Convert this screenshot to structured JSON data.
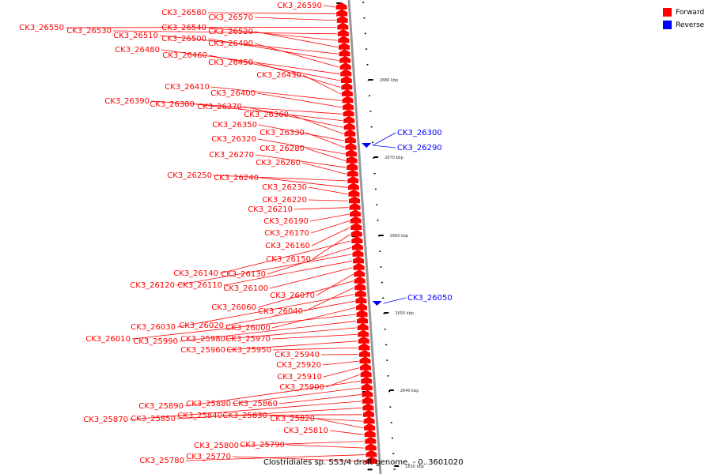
{
  "title": "Clostridiales sp. SS3/4 draft genome. - 0..3601020",
  "legend": [
    {
      "label": "Forward",
      "color": "#ff0000"
    },
    {
      "label": "Reverse",
      "color": "#0000ff"
    }
  ],
  "colors": {
    "forward": "#ff0000",
    "reverse": "#0000ff",
    "backbone": "#999999"
  },
  "axis_ticks": [
    "2680 kbp",
    "2670 kbp",
    "2660 kbp",
    "2650 kbp",
    "2640 kbp",
    "2630 kbp"
  ],
  "genes_forward": [
    "CK3_26590",
    "CK3_26580",
    "CK3_26570",
    "CK3_26550",
    "CK3_26530",
    "CK3_26540",
    "CK3_26520",
    "CK3_26510",
    "CK3_26500",
    "CK3_26490",
    "CK3_26480",
    "CK3_26460",
    "CK3_26450",
    "CK3_26430",
    "CK3_26410",
    "CK3_26400",
    "CK3_26390",
    "CK3_26380",
    "CK3_26370",
    "CK3_26360",
    "CK3_26350",
    "CK3_26330",
    "CK3_26320",
    "CK3_26280",
    "CK3_26270",
    "CK3_26260",
    "CK3_26250",
    "CK3_26240",
    "CK3_26230",
    "CK3_26220",
    "CK3_26210",
    "CK3_26190",
    "CK3_26170",
    "CK3_26160",
    "CK3_26150",
    "CK3_26140",
    "CK3_26130",
    "CK3_26120",
    "CK3_26110",
    "CK3_26100",
    "CK3_26070",
    "CK3_26060",
    "CK3_26040",
    "CK3_26030",
    "CK3_26020",
    "CK3_26000",
    "CK3_26010",
    "CK3_25990",
    "CK3_25980",
    "CK3_25970",
    "CK3_25960",
    "CK3_25950",
    "CK3_25940",
    "CK3_25920",
    "CK3_25910",
    "CK3_25900",
    "CK3_25890",
    "CK3_25880",
    "CK3_25860",
    "CK3_25870",
    "CK3_25850",
    "CK3_25840",
    "CK3_25830",
    "CK3_25820",
    "CK3_25810",
    "CK3_25800",
    "CK3_25790",
    "CK3_25780",
    "CK3_25770"
  ],
  "genes_reverse": [
    "CK3_26300",
    "CK3_26290",
    "CK3_26050"
  ]
}
